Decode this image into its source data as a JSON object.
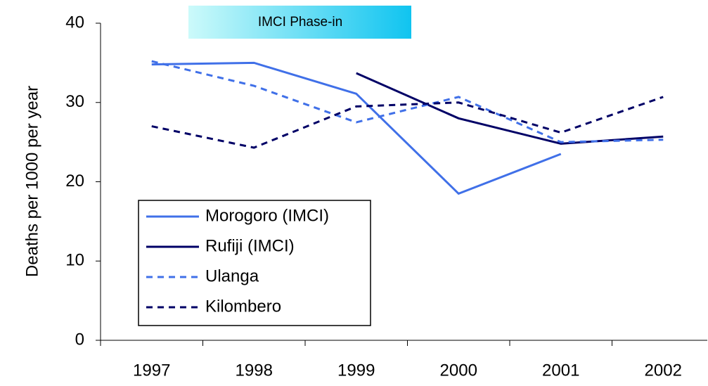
{
  "chart_data": {
    "type": "line",
    "annotation": "IMCI Phase-in",
    "y_axis_label": "Deaths per 1000 per year",
    "categories": [
      "1997",
      "1998",
      "1999",
      "2000",
      "2001",
      "2002"
    ],
    "series": [
      {
        "name": "Morogoro (IMCI)",
        "color": "#4070e8",
        "dash": false,
        "values": [
          34.8,
          35.0,
          31.1,
          18.5,
          23.5,
          null
        ]
      },
      {
        "name": "Rufiji (IMCI)",
        "color": "#000066",
        "dash": false,
        "values": [
          null,
          null,
          33.7,
          28.0,
          24.8,
          25.7
        ]
      },
      {
        "name": "Ulanga",
        "color": "#4070e8",
        "dash": true,
        "values": [
          35.2,
          32.1,
          27.5,
          30.7,
          25.0,
          25.3
        ]
      },
      {
        "name": "Kilombero",
        "color": "#000066",
        "dash": true,
        "values": [
          27.0,
          24.3,
          29.5,
          30.0,
          26.2,
          30.7
        ]
      }
    ],
    "ylim": [
      0,
      40
    ],
    "yticks": [
      0,
      10,
      20,
      30,
      40
    ],
    "legend": "lower-left"
  }
}
